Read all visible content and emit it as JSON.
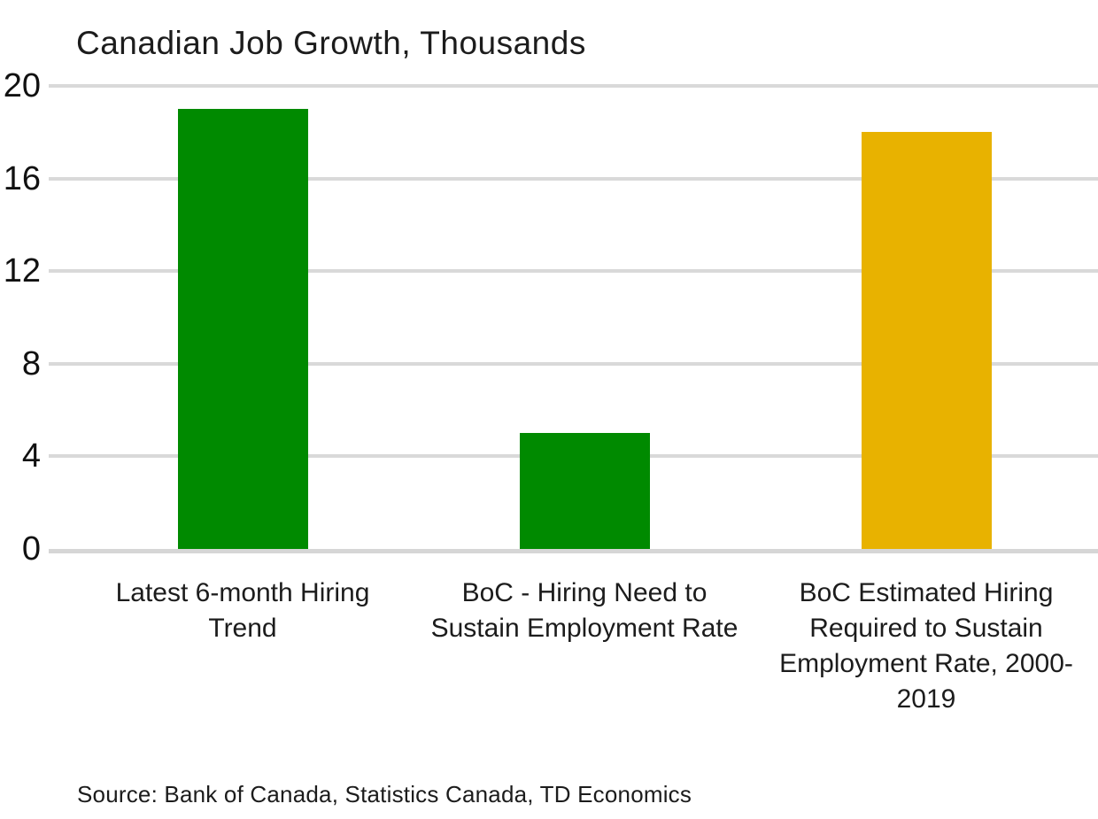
{
  "chart_data": {
    "type": "bar",
    "title": "Canadian Job Growth, Thousands",
    "categories": [
      "Latest 6-month Hiring Trend",
      "BoC - Hiring Need to Sustain Employment Rate",
      "BoC Estimated Hiring Required to Sustain Employment Rate, 2000-2019"
    ],
    "values": [
      19,
      5,
      18
    ],
    "bar_colors": [
      "#008A00",
      "#008A00",
      "#E8B200"
    ],
    "xlabel": "",
    "ylabel": "",
    "ylim": [
      0,
      20
    ],
    "yticks": [
      0,
      4,
      8,
      12,
      16,
      20
    ],
    "grid": true,
    "gridline_color": "#D9D9D9",
    "axisline_color": "#D6D6D6",
    "legend": "none"
  },
  "source": "Source: Bank of Canada, Statistics Canada, TD Economics"
}
